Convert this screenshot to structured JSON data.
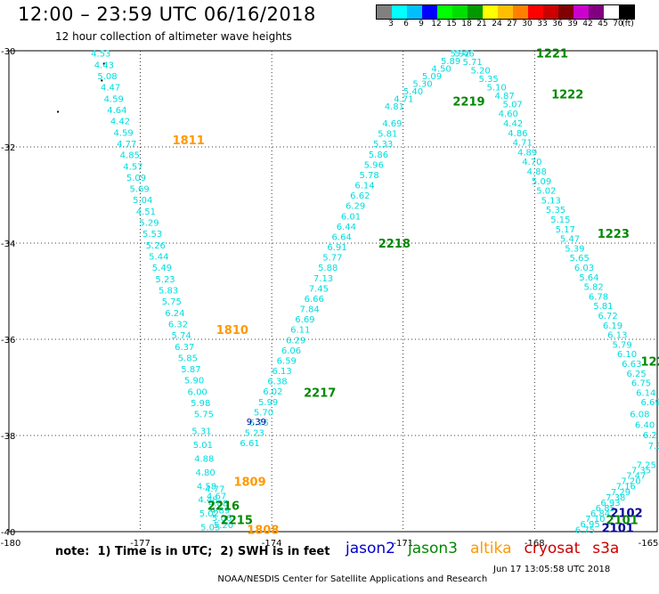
{
  "header": {
    "title": "12:00 – 23:59 UTC 06/16/2018",
    "subtitle": "12 hour collection of altimeter wave heights"
  },
  "colorbar": {
    "colors": [
      "#808080",
      "#00ffff",
      "#00bfff",
      "#0000ff",
      "#00ff00",
      "#00dd00",
      "#009900",
      "#ffff00",
      "#ffbf00",
      "#ff8000",
      "#ff0000",
      "#cc0000",
      "#800000",
      "#cc00cc",
      "#800080",
      "#ffffff",
      "#000000"
    ],
    "labels": [
      "3",
      "6",
      "9",
      "12",
      "15",
      "18",
      "21",
      "24",
      "27",
      "30",
      "33",
      "36",
      "39",
      "42",
      "45",
      "70",
      "(ft)"
    ]
  },
  "map": {
    "x_ticks": [
      "-180",
      "-177",
      "-174",
      "-171",
      "-168",
      "-165"
    ],
    "y_ticks": [
      "-30",
      "-32",
      "-34",
      "-36",
      "-38",
      "-40"
    ],
    "xlim": [
      -180,
      -165.2
    ],
    "ylim": [
      -40,
      -30
    ]
  },
  "time_labels": [
    {
      "text": "1811",
      "color": "#ff9900",
      "lon": -175.9,
      "lat": -31.85
    },
    {
      "text": "1810",
      "color": "#ff9900",
      "lon": -174.9,
      "lat": -35.8
    },
    {
      "text": "1809",
      "color": "#ff9900",
      "lon": -174.5,
      "lat": -38.95
    },
    {
      "text": "1808",
      "color": "#ff9900",
      "lon": -174.2,
      "lat": -39.95
    },
    {
      "text": "2215",
      "color": "#008800",
      "lon": -174.8,
      "lat": -39.75
    },
    {
      "text": "2216",
      "color": "#008800",
      "lon": -175.1,
      "lat": -39.45
    },
    {
      "text": "2217",
      "color": "#008800",
      "lon": -172.9,
      "lat": -37.1
    },
    {
      "text": "2218",
      "color": "#008800",
      "lon": -171.2,
      "lat": -34.0
    },
    {
      "text": "2219",
      "color": "#008800",
      "lon": -169.5,
      "lat": -31.05
    },
    {
      "text": "1221",
      "color": "#008800",
      "lon": -167.6,
      "lat": -30.05
    },
    {
      "text": "1222",
      "color": "#008800",
      "lon": -167.25,
      "lat": -30.9
    },
    {
      "text": "1223",
      "color": "#008800",
      "lon": -166.2,
      "lat": -33.8
    },
    {
      "text": "122",
      "color": "#008800",
      "lon": -165.3,
      "lat": -36.45
    },
    {
      "text": "2102",
      "color": "#000099",
      "lon": -165.9,
      "lat": -39.6
    },
    {
      "text": "2101",
      "color": "#008800",
      "lon": -166.0,
      "lat": -39.75
    },
    {
      "text": "2101",
      "color": "#000099",
      "lon": -166.1,
      "lat": -39.92
    }
  ],
  "tracks": [
    {
      "name": "left-descending",
      "color": "#00dddd",
      "start": [
        -177.9,
        -30.05
      ],
      "end": [
        -175.55,
        -37.55
      ],
      "values": [
        "4.53",
        "4.43",
        "5.08",
        "4.47",
        "4.59",
        "4.64",
        "4.42",
        "4.59",
        "4.77",
        "4.85",
        "4.57",
        "5.09",
        "5.69",
        "5.04",
        "4.51",
        "5.29",
        "5.53",
        "5.26",
        "5.44",
        "5.49",
        "5.23",
        "5.83",
        "5.75",
        "6.24",
        "6.32",
        "5.74",
        "6.37",
        "5.85",
        "5.87",
        "5.90",
        "6.00",
        "5.98",
        "5.75"
      ]
    },
    {
      "name": "left-continued",
      "color": "#00dddd",
      "start": [
        -175.6,
        -37.9
      ],
      "end": [
        -175.4,
        -39.9
      ],
      "values": [
        "5.31",
        "5.01",
        "4.88",
        "4.80",
        "4.58",
        "4.48",
        "5.02",
        "5.05"
      ]
    },
    {
      "name": "inner-continued",
      "color": "#00dddd",
      "start": [
        -175.3,
        -39.1
      ],
      "end": [
        -175.1,
        -39.85
      ],
      "values": [
        "4.77",
        "4.67",
        "4.88",
        "4.89",
        "5.06",
        "5.20"
      ]
    },
    {
      "name": "ascending-west",
      "color": "#00dddd",
      "start": [
        -174.5,
        -38.15
      ],
      "end": [
        -171.25,
        -31.5
      ],
      "values": [
        "6.61",
        "5.23",
        "6.75",
        "5.70",
        "5.99",
        "6.02",
        "6.38",
        "6.13",
        "6.59",
        "6.06",
        "6.29",
        "6.11",
        "6.69",
        "7.84",
        "6.66",
        "7.45",
        "7.13",
        "5.88",
        "5.77",
        "6.91",
        "6.64",
        "6.44",
        "6.01",
        "6.29",
        "6.62",
        "6.14",
        "5.78",
        "5.96",
        "5.86",
        "5.33",
        "5.81",
        "4.69"
      ]
    },
    {
      "name": "ascending-peak",
      "color": "#00dddd",
      "start": [
        -171.2,
        -31.15
      ],
      "end": [
        -169.7,
        -30.05
      ],
      "values": [
        "4.81",
        "4.71",
        "5.40",
        "5.30",
        "5.09",
        "4.50",
        "5.89",
        "5.92"
      ]
    },
    {
      "name": "descending-peak",
      "color": "#00dddd",
      "start": [
        -169.6,
        -30.05
      ],
      "end": [
        -168.5,
        -31.1
      ],
      "values": [
        "5.46",
        "5.71",
        "5.20",
        "5.35",
        "5.10",
        "4.87",
        "5.07"
      ]
    },
    {
      "name": "descending-east",
      "color": "#00dddd",
      "start": [
        -168.6,
        -31.3
      ],
      "end": [
        -165.35,
        -37.3
      ],
      "values": [
        "4.60",
        "4.42",
        "4.86",
        "4.71",
        "4.89",
        "4.70",
        "4.88",
        "5.09",
        "5.02",
        "5.13",
        "5.35",
        "5.15",
        "5.17",
        "5.47",
        "5.39",
        "5.65",
        "6.03",
        "5.64",
        "5.82",
        "6.78",
        "5.81",
        "6.72",
        "6.19",
        "6.13",
        "5.79",
        "6.10",
        "6.63",
        "6.25",
        "6.75",
        "6.14",
        "6.69"
      ]
    },
    {
      "name": "east-edge",
      "color": "#00dddd",
      "start": [
        -165.6,
        -37.55
      ],
      "end": [
        -165.25,
        -38.2
      ],
      "values": [
        "6.08",
        "6.40",
        "6.2",
        "7.3"
      ]
    },
    {
      "name": "east-dense",
      "color": "#00dddd",
      "start": [
        -165.45,
        -38.6
      ],
      "end": [
        -166.85,
        -39.95
      ],
      "values": [
        "7.25",
        "7.35",
        "7.47",
        "7.20",
        "7.16",
        "7.29",
        "7.38",
        "6.93",
        "6.85",
        "6.84",
        "7.10",
        "6.95",
        "6.75"
      ]
    }
  ],
  "highlights": [
    {
      "text": "9.39",
      "color": "#000099",
      "lon": -174.35,
      "lat": -37.7
    }
  ],
  "note": "note:  1) Time is in UTC;  2) SWH is in feet",
  "satellites": [
    {
      "name": "jason2",
      "color": "#0000cc"
    },
    {
      "name": "jason3",
      "color": "#008800"
    },
    {
      "name": "altika",
      "color": "#ff9900"
    },
    {
      "name": "cryosat",
      "color": "#cc0000"
    },
    {
      "name": "s3a",
      "color": "#cc0000"
    }
  ],
  "footer": {
    "credit": "NOAA/NESDIS Center for Satellite Applications and Research",
    "timestamp": "Jun 17 13:05:58 UTC 2018"
  }
}
